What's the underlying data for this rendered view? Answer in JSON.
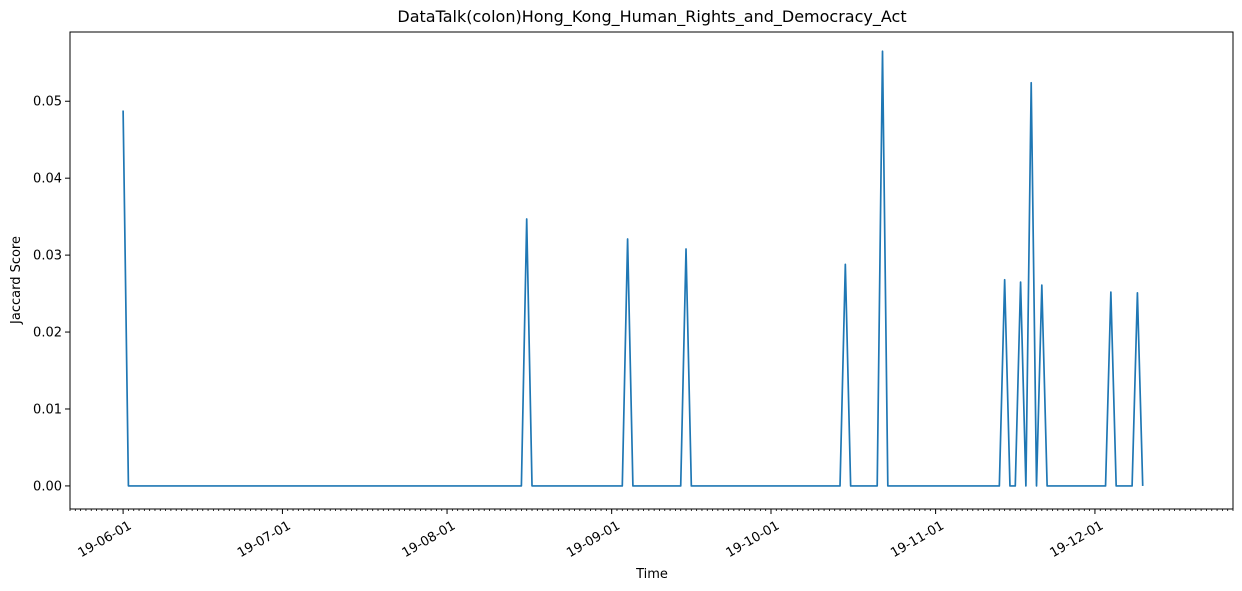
{
  "chart_data": {
    "type": "line",
    "title": "DataTalk(colon)Hong_Kong_Human_Rights_and_Democracy_Act",
    "xlabel": "Time",
    "ylabel": "Jaccard Score",
    "x_axis_type": "date",
    "x_tick_labels": [
      "19-06-01",
      "19-07-01",
      "19-08-01",
      "19-09-01",
      "19-10-01",
      "19-11-01",
      "19-12-01"
    ],
    "x_tick_dates": [
      "2019-06-01",
      "2019-07-01",
      "2019-08-01",
      "2019-09-01",
      "2019-10-01",
      "2019-11-01",
      "2019-12-01"
    ],
    "xlim": [
      "2019-05-22",
      "2019-12-27"
    ],
    "y_tick_labels": [
      "0.00",
      "0.01",
      "0.02",
      "0.03",
      "0.04",
      "0.05"
    ],
    "ylim": [
      -0.003,
      0.059
    ],
    "grid": false,
    "legend": "none",
    "series": [
      {
        "color": "#1f77b4",
        "x": [
          "2019-06-01",
          "2019-06-02",
          "2019-08-15",
          "2019-08-16",
          "2019-08-17",
          "2019-09-03",
          "2019-09-04",
          "2019-09-05",
          "2019-09-14",
          "2019-09-15",
          "2019-09-16",
          "2019-10-14",
          "2019-10-15",
          "2019-10-16",
          "2019-10-21",
          "2019-10-22",
          "2019-10-23",
          "2019-11-13",
          "2019-11-14",
          "2019-11-15",
          "2019-11-16",
          "2019-11-17",
          "2019-11-18",
          "2019-11-19",
          "2019-11-20",
          "2019-11-21",
          "2019-11-22",
          "2019-12-03",
          "2019-12-04",
          "2019-12-05",
          "2019-12-08",
          "2019-12-09",
          "2019-12-10"
        ],
        "values": [
          0.0488,
          0.0,
          0.0,
          0.0347,
          0.0,
          0.0,
          0.0321,
          0.0,
          0.0,
          0.0308,
          0.0,
          0.0,
          0.0288,
          0.0,
          0.0,
          0.0565,
          0.0,
          0.0,
          0.0268,
          0.0,
          0.0,
          0.0265,
          0.0,
          0.0524,
          0.0,
          0.0261,
          0.0,
          0.0,
          0.0252,
          0.0,
          0.0,
          0.0251,
          0.0
        ]
      }
    ]
  }
}
